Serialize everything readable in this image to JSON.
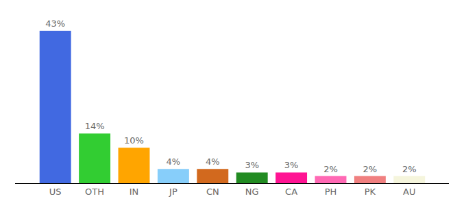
{
  "chart_data": {
    "type": "bar",
    "categories": [
      "US",
      "OTH",
      "IN",
      "JP",
      "CN",
      "NG",
      "CA",
      "PH",
      "PK",
      "AU"
    ],
    "values": [
      43,
      14,
      10,
      4,
      4,
      3,
      3,
      2,
      2,
      2
    ],
    "value_labels": [
      "43%",
      "14%",
      "10%",
      "4%",
      "4%",
      "3%",
      "3%",
      "2%",
      "2%",
      "2%"
    ],
    "colors": [
      "#4169e1",
      "#32cd32",
      "#ffa500",
      "#87cefa",
      "#d2691e",
      "#228b22",
      "#ff1493",
      "#ff69b4",
      "#f08080",
      "#f5f5dc"
    ],
    "ylim": [
      0,
      43
    ],
    "data_labels": true,
    "tick_labels": "x",
    "grid": false
  }
}
